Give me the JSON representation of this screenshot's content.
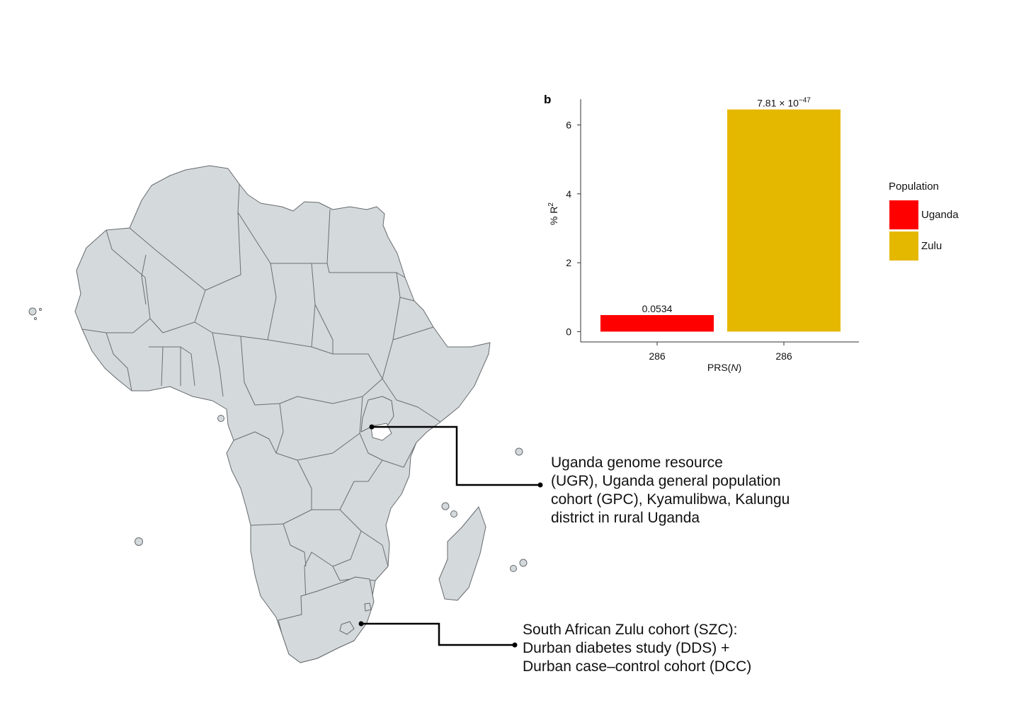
{
  "panel_label": "b",
  "map": {
    "highlights": [
      {
        "name": "Uganda",
        "color": "#d63a2c",
        "annotation": "Uganda genome resource\n(UGR), Uganda general population\ncohort (GPC), Kyamulibwa, Kalungu\ndistrict in rural Uganda"
      },
      {
        "name": "South Africa",
        "color": "#2f5ba5",
        "annotation": "South African Zulu cohort (SZC):\nDurban diabetes study (DDS) +\nDurban case–control cohort (DCC)"
      }
    ],
    "land_color": "#d4d9dc",
    "border_color": "#666a6e"
  },
  "chart_data": {
    "type": "bar",
    "categories": [
      "286",
      "286"
    ],
    "series": [
      {
        "name": "Uganda",
        "value": 0.48,
        "color": "#ff0000",
        "p_label": "0.0534"
      },
      {
        "name": "Zulu",
        "value": 6.45,
        "color": "#e5b800",
        "p_label_base": "7.81 × 10",
        "p_label_exp": "−47"
      }
    ],
    "xlabel": "PRS(N)",
    "xlabel_prefix": "PRS(",
    "xlabel_var": "N",
    "xlabel_suffix": ")",
    "ylabel": "% R2",
    "ylabel_base": "% R",
    "ylabel_sup": "2",
    "ylim": [
      -0.3,
      6.75
    ],
    "yticks": [
      0,
      2,
      4,
      6
    ],
    "legend_title": "Population",
    "legend_position": "right",
    "grid": false
  }
}
